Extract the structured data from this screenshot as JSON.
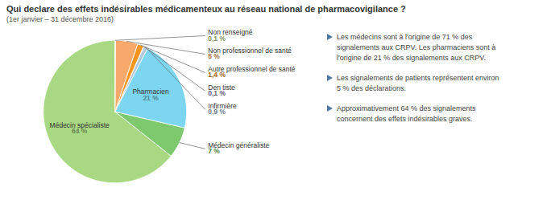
{
  "chart_data": {
    "type": "pie",
    "title": "Qui declare des effets indésirables médicamenteux au réseau national de pharmacovigilance ?",
    "subtitle": "(1er janvier – 31 décembre 2016)",
    "categories": [
      "Médecin spécialiste",
      "Médecin généraliste",
      "Pharmacien",
      "Infirmière",
      "Den tiste",
      "Autre professionnel de santé",
      "Non professionnel de santé",
      "Non renseigné"
    ],
    "values": [
      64,
      7,
      21,
      0.9,
      0.1,
      1.4,
      5,
      0.1
    ],
    "value_labels": [
      "64 %",
      "7 %",
      "21 %",
      "0,9 %",
      "0,1 %",
      "1,4 %",
      "5 %",
      "0,1 %"
    ],
    "colors": [
      "#a8d882",
      "#7ec86e",
      "#7dd6f0",
      "#b0c8e0",
      "#9090c0",
      "#f7941d",
      "#f9a86c",
      "#c8e6a0"
    ],
    "data_labels": true,
    "annotations": [
      "Les médecins sont à l'origine de 71 % des\nsignalements aux CRPV. Les pharmaciens sont à\nl'origine de 21 % des signalements aux CRPV.",
      "Les signalements de patients représentent environ\n5 % des déclarations.",
      "Approximativement 64 % des signalements\nconcernent des effets indésirables graves."
    ]
  }
}
